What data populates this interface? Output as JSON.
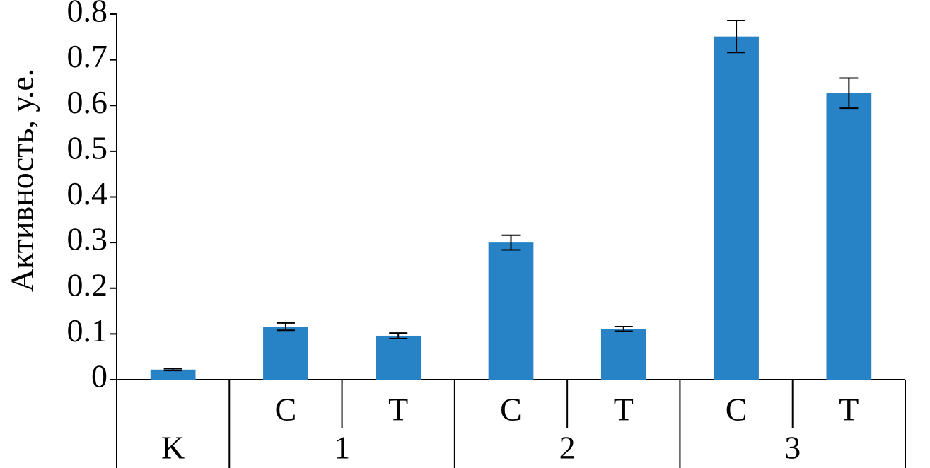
{
  "chart_data": {
    "type": "bar",
    "y_label": "Активность, у.е.",
    "groups": [
      {
        "label": "K",
        "categories": [
          null
        ]
      },
      {
        "label": "1",
        "categories": [
          "C",
          "T"
        ]
      },
      {
        "label": "2",
        "categories": [
          "C",
          "T"
        ]
      },
      {
        "label": "3",
        "categories": [
          "C",
          "T"
        ]
      }
    ],
    "values": [
      0.022,
      0.116,
      0.096,
      0.3,
      0.111,
      0.751,
      0.627
    ],
    "errors": [
      0.002,
      0.008,
      0.006,
      0.016,
      0.005,
      0.035,
      0.033
    ],
    "color": "#2783c6",
    "ylim": [
      0,
      0.8
    ],
    "yticks": [
      0,
      0.1,
      0.2,
      0.3,
      0.4,
      0.5,
      0.6,
      0.7,
      0.8
    ],
    "grid": false
  }
}
